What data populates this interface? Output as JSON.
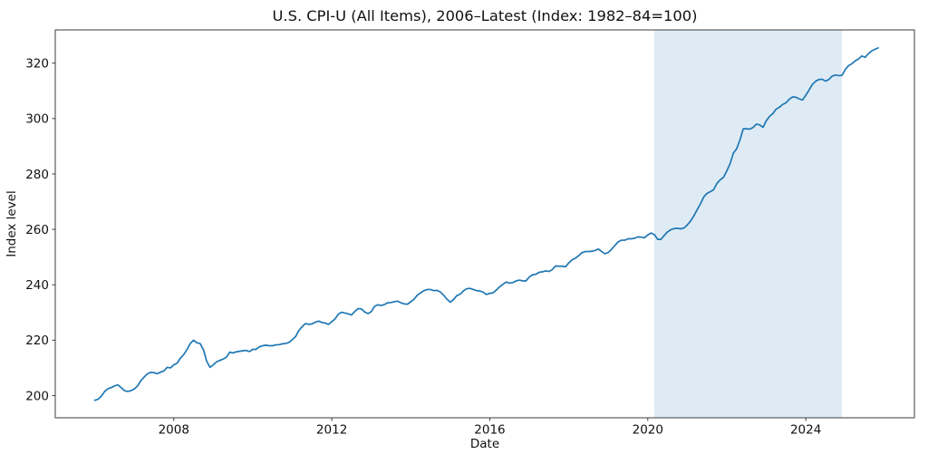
{
  "chart_data": {
    "type": "line",
    "title": "U.S. CPI-U (All Items), 2006–Latest (Index: 1982–84=100)",
    "xlabel": "Date",
    "ylabel": "Index level",
    "x_frequency": "monthly",
    "x_start_decimal_year": 2006.0,
    "values": [
      198.3,
      198.7,
      199.8,
      201.5,
      202.5,
      202.9,
      203.5,
      203.9,
      202.9,
      201.8,
      201.5,
      201.8,
      202.4,
      203.5,
      205.4,
      206.7,
      207.9,
      208.4,
      208.3,
      207.9,
      208.5,
      208.9,
      210.2,
      210.0,
      211.1,
      211.7,
      213.5,
      214.8,
      216.6,
      218.8,
      220.0,
      219.1,
      218.8,
      216.6,
      212.4,
      210.2,
      211.1,
      212.2,
      212.7,
      213.2,
      213.9,
      215.7,
      215.4,
      215.8,
      216.0,
      216.2,
      216.3,
      215.9,
      216.7,
      216.7,
      217.6,
      218.0,
      218.2,
      218.0,
      218.0,
      218.3,
      218.4,
      218.7,
      218.8,
      219.2,
      220.2,
      221.3,
      223.5,
      224.9,
      226.0,
      225.7,
      225.9,
      226.5,
      226.9,
      226.4,
      226.2,
      225.7,
      226.7,
      227.7,
      229.4,
      230.1,
      229.8,
      229.5,
      229.1,
      230.4,
      231.4,
      231.3,
      230.2,
      229.6,
      230.3,
      232.2,
      232.8,
      232.5,
      232.9,
      233.5,
      233.6,
      233.9,
      234.1,
      233.5,
      233.1,
      233.0,
      233.9,
      234.8,
      236.3,
      237.1,
      237.9,
      238.3,
      238.3,
      237.9,
      238.0,
      237.4,
      236.2,
      234.8,
      233.7,
      234.7,
      236.1,
      236.6,
      237.8,
      238.6,
      238.7,
      238.3,
      237.9,
      237.8,
      237.3,
      236.5,
      236.9,
      237.1,
      238.1,
      239.3,
      240.2,
      241.0,
      240.6,
      240.8,
      241.4,
      241.7,
      241.4,
      241.4,
      242.8,
      243.6,
      243.8,
      244.5,
      244.7,
      245.0,
      244.8,
      245.5,
      246.8,
      246.7,
      246.7,
      246.5,
      247.9,
      249.0,
      249.6,
      250.5,
      251.6,
      252.0,
      252.0,
      252.1,
      252.4,
      252.9,
      252.0,
      251.2,
      251.7,
      252.8,
      254.2,
      255.5,
      256.1,
      256.1,
      256.6,
      256.6,
      256.8,
      257.3,
      257.2,
      257.0,
      258.0,
      258.7,
      258.1,
      256.4,
      256.4,
      257.8,
      259.1,
      259.9,
      260.3,
      260.4,
      260.2,
      260.5,
      261.6,
      263.0,
      264.9,
      267.1,
      269.2,
      271.7,
      273.0,
      273.6,
      274.3,
      276.6,
      277.9,
      278.8,
      281.1,
      283.7,
      287.5,
      289.1,
      292.3,
      296.3,
      296.3,
      296.2,
      296.8,
      298.0,
      297.7,
      296.8,
      299.2,
      300.8,
      301.8,
      303.4,
      304.1,
      305.1,
      305.7,
      307.0,
      307.8,
      307.7,
      307.1,
      306.7,
      308.4,
      310.3,
      312.3,
      313.5,
      314.1,
      314.2,
      313.5,
      314.1,
      315.3,
      315.7,
      315.5,
      315.6,
      317.7,
      319.1,
      319.8,
      320.8,
      321.5,
      322.6,
      322.1,
      323.4,
      324.4,
      325.0,
      325.5
    ],
    "xlim": [
      2005.0,
      2026.75
    ],
    "ylim": [
      192.0,
      332.0
    ],
    "xticks": [
      2008,
      2012,
      2016,
      2020,
      2024
    ],
    "yticks": [
      200,
      220,
      240,
      260,
      280,
      300,
      320
    ],
    "grid": false,
    "legend": "none",
    "line_color": "#1f77b4",
    "line_width": 1.5,
    "shaded_region": {
      "x0": 2020.167,
      "x1": 2024.917,
      "color": "#1f77b4",
      "opacity": 0.15
    },
    "axes_color": "#3b3b3b",
    "text_color": "#111111",
    "background_color": "#ffffff"
  }
}
